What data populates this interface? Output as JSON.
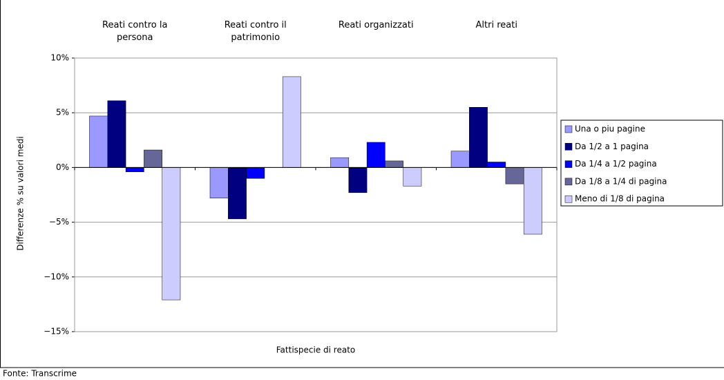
{
  "chart_data": {
    "type": "bar",
    "categories": [
      "Reati contro la persona",
      "Reati contro il patrimonio",
      "Reati organizzati",
      "Altri reati"
    ],
    "series": [
      {
        "name": "Una o piu pagine",
        "color": "#9999ff",
        "values": [
          4.7,
          -2.8,
          0.9,
          1.5
        ]
      },
      {
        "name": "Da 1/2 a 1 pagina",
        "color": "#000080",
        "values": [
          6.1,
          -4.7,
          -2.3,
          5.5
        ]
      },
      {
        "name": "Da 1/4 a 1/2 pagina",
        "color": "#0000ff",
        "values": [
          -0.4,
          -1.0,
          2.3,
          0.5
        ]
      },
      {
        "name": "Da 1/8 a 1/4 di pagina",
        "color": "#666699",
        "values": [
          1.6,
          0,
          0.6,
          -1.5
        ]
      },
      {
        "name": "Meno di 1/8 di pagina",
        "color": "#ccccff",
        "values": [
          -12.1,
          8.3,
          -1.7,
          -6.1
        ]
      }
    ],
    "ylim": [
      -15,
      10
    ],
    "yticks": [
      {
        "value": -15,
        "label": "−15%"
      },
      {
        "value": -10,
        "label": "−10%"
      },
      {
        "value": -5,
        "label": "−5%"
      },
      {
        "value": 0,
        "label": "0%"
      },
      {
        "value": 5,
        "label": "5%"
      },
      {
        "value": 10,
        "label": "10%"
      }
    ],
    "y_label": "Differenze % su valori medi",
    "x_label": "Fattispecie di reato",
    "source": "Fonte: Transcrime",
    "grid": true,
    "legend": "right"
  }
}
